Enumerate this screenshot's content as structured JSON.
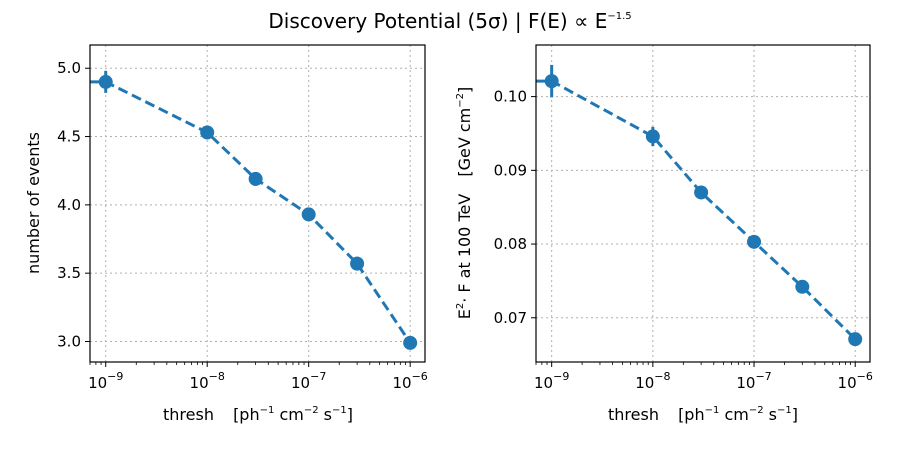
{
  "figure": {
    "title_main": "Discovery Potential (5σ) | F(E) ∝ E",
    "title_sup": "−1.5"
  },
  "chart_data": [
    {
      "type": "line",
      "xscale": "log",
      "xlim": [
        7e-10,
        1.4e-06
      ],
      "ylim": [
        2.85,
        5.17
      ],
      "xticks": [
        1e-09,
        1e-08,
        1e-07,
        1e-06
      ],
      "xtick_labels": [
        {
          "base": "10",
          "exp": "−9"
        },
        {
          "base": "10",
          "exp": "−8"
        },
        {
          "base": "10",
          "exp": "−7"
        },
        {
          "base": "10",
          "exp": "−6"
        }
      ],
      "yticks": [
        3.0,
        3.5,
        4.0,
        4.5,
        5.0
      ],
      "ytick_labels": [
        "3.0",
        "3.5",
        "4.0",
        "4.5",
        "5.0"
      ],
      "xlabel": "thresh [ph⁻¹ cm⁻² s⁻¹]",
      "ylabel": "number of events",
      "grid": true,
      "color": "#1f77b4",
      "series": [
        {
          "x": [
            1e-09,
            1e-08,
            3e-08,
            1e-07,
            3e-07,
            1e-06
          ],
          "y": [
            4.9,
            4.53,
            4.19,
            3.93,
            3.57,
            2.99
          ],
          "yerr": [
            0.08,
            0.05,
            0.05,
            0.03,
            0.05,
            0.02
          ]
        }
      ],
      "extends_left_to_edge": true
    },
    {
      "type": "line",
      "xscale": "log",
      "xlim": [
        7e-10,
        1.4e-06
      ],
      "ylim": [
        0.064,
        0.107
      ],
      "xticks": [
        1e-09,
        1e-08,
        1e-07,
        1e-06
      ],
      "xtick_labels": [
        {
          "base": "10",
          "exp": "−9"
        },
        {
          "base": "10",
          "exp": "−8"
        },
        {
          "base": "10",
          "exp": "−7"
        },
        {
          "base": "10",
          "exp": "−6"
        }
      ],
      "yticks": [
        0.07,
        0.08,
        0.09,
        0.1
      ],
      "ytick_labels": [
        "0.07",
        "0.08",
        "0.09",
        "0.10"
      ],
      "xlabel": "thresh [ph⁻¹ cm⁻² s⁻¹]",
      "ylabel": "E² · F at 100 TeV [GeV cm⁻²]",
      "grid": true,
      "color": "#1f77b4",
      "series": [
        {
          "x": [
            1e-09,
            1e-08,
            3e-08,
            1e-07,
            3e-07,
            1e-06
          ],
          "y": [
            0.1021,
            0.0946,
            0.087,
            0.0803,
            0.0742,
            0.0671
          ],
          "yerr": [
            0.0022,
            0.0013,
            0.0008,
            0.0004,
            0.0007,
            0.0003
          ]
        }
      ],
      "extends_left_to_edge": true
    }
  ],
  "axis_text": {
    "left": {
      "xlabel_main": "thresh",
      "xlabel_unit": "[ph",
      "xlabel_u1": "−1",
      "xlabel_u2": " cm",
      "xlabel_u3": "−2",
      "xlabel_u4": " s",
      "xlabel_u5": "−1",
      "xlabel_u6": "]",
      "ylabel": "number of events"
    },
    "right": {
      "xlabel_main": "thresh",
      "xlabel_unit": "[ph",
      "xlabel_u1": "−1",
      "xlabel_u2": " cm",
      "xlabel_u3": "−2",
      "xlabel_u4": " s",
      "xlabel_u5": "−1",
      "xlabel_u6": "]",
      "ylabel_a": "E",
      "ylabel_a_sup": "2",
      "ylabel_b": "· F at 100 TeV",
      "ylabel_c": "[GeV cm",
      "ylabel_c_sup": "−2",
      "ylabel_d": "]"
    }
  }
}
